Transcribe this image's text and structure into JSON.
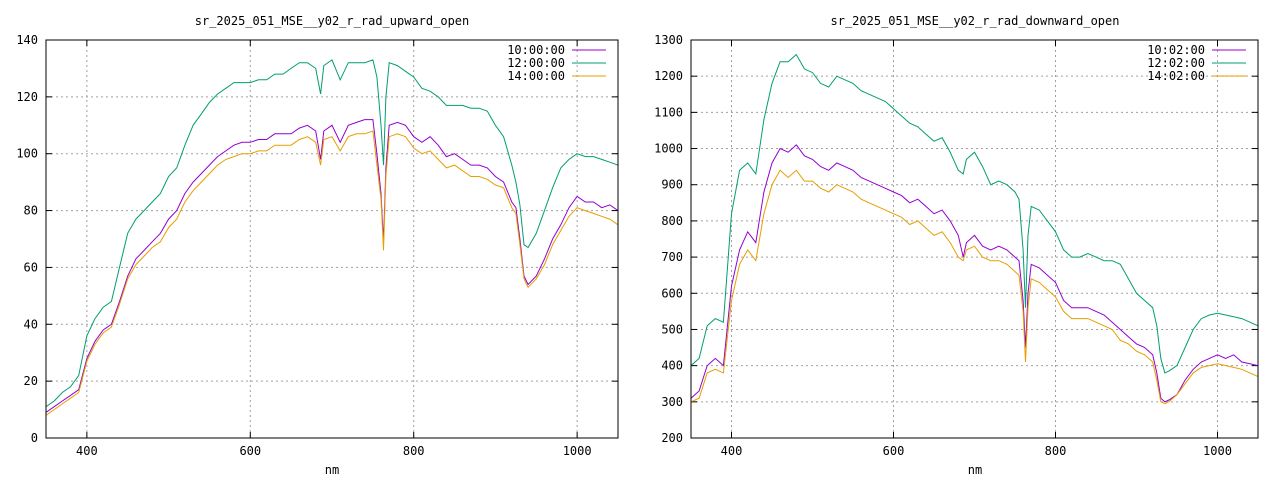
{
  "chart_data": [
    {
      "type": "line",
      "title": "sr_2025_051_MSE__y02_r_rad_upward_open",
      "xlabel": "nm",
      "ylabel": "",
      "xlim": [
        350,
        1050
      ],
      "ylim": [
        0,
        140
      ],
      "xticks": [
        400,
        600,
        800,
        1000
      ],
      "yticks": [
        0,
        20,
        40,
        60,
        80,
        100,
        120,
        140
      ],
      "grid": true,
      "legend_position": "top-right",
      "x": [
        350,
        360,
        370,
        380,
        390,
        400,
        410,
        420,
        430,
        440,
        450,
        460,
        470,
        480,
        490,
        500,
        510,
        520,
        530,
        540,
        550,
        560,
        570,
        580,
        590,
        600,
        610,
        620,
        630,
        640,
        650,
        660,
        670,
        680,
        686,
        690,
        700,
        710,
        720,
        730,
        740,
        750,
        755,
        760,
        763,
        766,
        770,
        780,
        790,
        800,
        810,
        820,
        830,
        840,
        850,
        860,
        870,
        880,
        890,
        900,
        910,
        920,
        925,
        930,
        935,
        940,
        950,
        960,
        970,
        980,
        990,
        1000,
        1010,
        1020,
        1030,
        1040,
        1050
      ],
      "series": [
        {
          "name": "10:00:00",
          "color": "#9400d3",
          "values": [
            9,
            11,
            13,
            15,
            17,
            28,
            34,
            38,
            40,
            48,
            57,
            63,
            66,
            69,
            72,
            77,
            80,
            86,
            90,
            93,
            96,
            99,
            101,
            103,
            104,
            104,
            105,
            105,
            107,
            107,
            107,
            109,
            110,
            108,
            98,
            108,
            110,
            104,
            110,
            111,
            112,
            112,
            100,
            86,
            69,
            95,
            110,
            111,
            110,
            106,
            104,
            106,
            103,
            99,
            100,
            98,
            96,
            96,
            95,
            92,
            90,
            83,
            81,
            70,
            57,
            54,
            57,
            63,
            70,
            75,
            81,
            85,
            83,
            83,
            81,
            82,
            80
          ]
        },
        {
          "name": "12:00:00",
          "color": "#009e73",
          "values": [
            11,
            13,
            16,
            18,
            22,
            36,
            42,
            46,
            48,
            60,
            72,
            77,
            80,
            83,
            86,
            92,
            95,
            103,
            110,
            114,
            118,
            121,
            123,
            125,
            125,
            125,
            126,
            126,
            128,
            128,
            130,
            132,
            132,
            130,
            121,
            131,
            133,
            126,
            132,
            132,
            132,
            133,
            127,
            110,
            96,
            120,
            132,
            131,
            129,
            127,
            123,
            122,
            120,
            117,
            117,
            117,
            116,
            116,
            115,
            110,
            106,
            96,
            90,
            82,
            68,
            67,
            72,
            80,
            88,
            95,
            98,
            100,
            99,
            99,
            98,
            97,
            96
          ]
        },
        {
          "name": "14:00:00",
          "color": "#e69f00",
          "values": [
            8,
            10,
            12,
            14,
            16,
            27,
            33,
            37,
            39,
            47,
            56,
            61,
            64,
            67,
            69,
            74,
            77,
            83,
            87,
            90,
            93,
            96,
            98,
            99,
            100,
            100,
            101,
            101,
            103,
            103,
            103,
            105,
            106,
            104,
            96,
            105,
            106,
            101,
            106,
            107,
            107,
            108,
            96,
            84,
            66,
            92,
            106,
            107,
            106,
            102,
            100,
            101,
            98,
            95,
            96,
            94,
            92,
            92,
            91,
            89,
            88,
            81,
            79,
            68,
            56,
            53,
            56,
            61,
            68,
            73,
            78,
            81,
            80,
            79,
            78,
            77,
            75
          ]
        }
      ]
    },
    {
      "type": "line",
      "title": "sr_2025_051_MSE__y02_r_rad_downward_open",
      "xlabel": "nm",
      "ylabel": "",
      "xlim": [
        350,
        1050
      ],
      "ylim": [
        200,
        1300
      ],
      "xticks": [
        400,
        600,
        800,
        1000
      ],
      "yticks": [
        200,
        300,
        400,
        500,
        600,
        700,
        800,
        900,
        1000,
        1100,
        1200,
        1300
      ],
      "grid": true,
      "legend_position": "top-right",
      "x": [
        350,
        360,
        370,
        380,
        390,
        400,
        410,
        420,
        430,
        440,
        450,
        460,
        470,
        480,
        490,
        500,
        510,
        520,
        530,
        540,
        550,
        560,
        570,
        580,
        590,
        600,
        610,
        620,
        630,
        640,
        650,
        660,
        670,
        680,
        686,
        690,
        700,
        710,
        720,
        730,
        740,
        750,
        755,
        760,
        763,
        766,
        770,
        780,
        790,
        800,
        810,
        820,
        830,
        840,
        850,
        860,
        870,
        880,
        890,
        900,
        910,
        920,
        925,
        930,
        935,
        940,
        950,
        960,
        970,
        980,
        990,
        1000,
        1010,
        1020,
        1030,
        1040,
        1050
      ],
      "series": [
        {
          "name": "10:02:00",
          "color": "#9400d3",
          "values": [
            310,
            330,
            400,
            420,
            400,
            620,
            720,
            770,
            740,
            880,
            960,
            1000,
            990,
            1010,
            980,
            970,
            950,
            940,
            960,
            950,
            940,
            920,
            910,
            900,
            890,
            880,
            870,
            850,
            860,
            840,
            820,
            830,
            800,
            760,
            700,
            740,
            760,
            730,
            720,
            730,
            720,
            700,
            690,
            580,
            450,
            600,
            680,
            670,
            650,
            630,
            580,
            560,
            560,
            560,
            550,
            540,
            520,
            500,
            480,
            460,
            450,
            430,
            380,
            310,
            300,
            305,
            320,
            360,
            390,
            410,
            420,
            430,
            420,
            430,
            410,
            405,
            400
          ]
        },
        {
          "name": "12:02:00",
          "color": "#009e73",
          "values": [
            400,
            420,
            510,
            530,
            520,
            820,
            940,
            960,
            930,
            1080,
            1180,
            1240,
            1240,
            1260,
            1220,
            1210,
            1180,
            1170,
            1200,
            1190,
            1180,
            1160,
            1150,
            1140,
            1130,
            1110,
            1090,
            1070,
            1060,
            1040,
            1020,
            1030,
            990,
            940,
            930,
            970,
            990,
            950,
            900,
            910,
            900,
            880,
            860,
            720,
            560,
            760,
            840,
            830,
            800,
            770,
            720,
            700,
            700,
            710,
            700,
            690,
            690,
            680,
            640,
            600,
            580,
            560,
            510,
            420,
            380,
            385,
            400,
            450,
            500,
            530,
            540,
            545,
            540,
            535,
            530,
            520,
            510
          ]
        },
        {
          "name": "14:02:00",
          "color": "#e69f00",
          "values": [
            300,
            310,
            380,
            390,
            380,
            580,
            680,
            720,
            690,
            820,
            900,
            940,
            920,
            940,
            910,
            910,
            890,
            880,
            900,
            890,
            880,
            860,
            850,
            840,
            830,
            820,
            810,
            790,
            800,
            780,
            760,
            770,
            740,
            700,
            690,
            720,
            730,
            700,
            690,
            690,
            680,
            660,
            650,
            550,
            410,
            560,
            640,
            630,
            610,
            590,
            550,
            530,
            530,
            530,
            520,
            510,
            500,
            470,
            460,
            440,
            430,
            410,
            360,
            300,
            295,
            300,
            320,
            350,
            380,
            395,
            400,
            405,
            400,
            395,
            390,
            380,
            370
          ]
        }
      ]
    }
  ]
}
